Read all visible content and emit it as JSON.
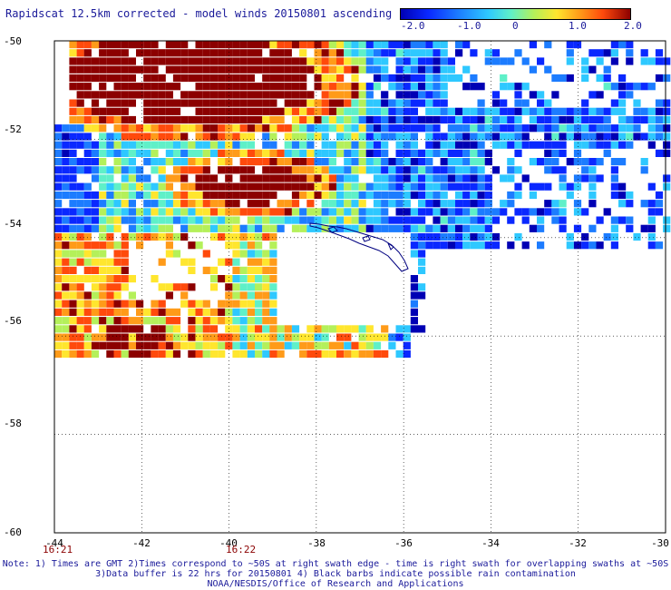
{
  "title": "Rapidscat 12.5km corrected - model winds 20150801 ascending",
  "colorbar": {
    "ticks": [
      "-2.0",
      "-1.0",
      "0",
      "1.0",
      "2.0"
    ],
    "range": [
      -2.0,
      2.0
    ],
    "colors": [
      "#0000b4",
      "#0a28ff",
      "#1c7cff",
      "#2ec8ff",
      "#5ff0c8",
      "#b4f05a",
      "#ffe62e",
      "#ff9b19",
      "#ff4a0c",
      "#8c0000"
    ]
  },
  "map": {
    "lon_range": [
      -44,
      -30
    ],
    "lat_range": [
      -60,
      -50
    ],
    "x_ticks": [
      "-44",
      "-42",
      "-40",
      "-38",
      "-36",
      "-34",
      "-32",
      "-30"
    ],
    "y_ticks": [
      "-50",
      "-52",
      "-54",
      "-56",
      "-58",
      "-60"
    ],
    "gridlines": true,
    "coastline": "South Georgia"
  },
  "times": [
    {
      "label": "16:21",
      "lon": -44
    },
    {
      "label": "16:22",
      "lon": -40
    }
  ],
  "notes": {
    "line1": "Note: 1) Times are GMT 2)Times correspond to ~50S at right swath edge - time is right swath for overlapping swaths at ~50S",
    "line2": "3)Data buffer is 22 hrs for 20150801 4) Black barbs indicate possible rain contamination",
    "line3": "NOAA/NESDIS/Office of Research and Applications"
  }
}
